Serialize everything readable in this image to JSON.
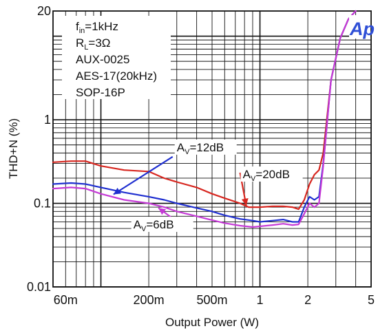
{
  "chart_data": {
    "type": "line",
    "title": "",
    "xlabel": "Output Power (W)",
    "ylabel": "THD+N (%)",
    "x_scale": "log",
    "y_scale": "log",
    "xlim": [
      0.05,
      5
    ],
    "ylim": [
      0.01,
      20
    ],
    "grid": true,
    "x_ticks": [
      {
        "value": 0.06,
        "label": "60m"
      },
      {
        "value": 0.2,
        "label": "200m"
      },
      {
        "value": 0.5,
        "label": "500m"
      },
      {
        "value": 1,
        "label": "1"
      },
      {
        "value": 2,
        "label": "2"
      },
      {
        "value": 5,
        "label": "5"
      }
    ],
    "y_ticks": [
      {
        "value": 0.01,
        "label": "0.01"
      },
      {
        "value": 0.1,
        "label": "0.1"
      },
      {
        "value": 1,
        "label": "1"
      },
      {
        "value": 20,
        "label": "20"
      }
    ],
    "legend": {
      "placement": "top-left",
      "lines": [
        {
          "main": "f",
          "sub": "in",
          "rest": "=1kHz"
        },
        {
          "main": "R",
          "sub": "L",
          "rest": "=3Ω"
        },
        {
          "main": "AUX-0025",
          "sub": "",
          "rest": ""
        },
        {
          "main": "AES-17(20kHz)",
          "sub": "",
          "rest": ""
        },
        {
          "main": "SOP-16P",
          "sub": "",
          "rest": ""
        }
      ]
    },
    "logo": {
      "text": "Ap",
      "color": "#2f4fd6"
    },
    "series": [
      {
        "label_main": "A",
        "label_sub": "V",
        "label_rest": "=20dB",
        "color": "#d7261f",
        "x": [
          0.05,
          0.065,
          0.08,
          0.1,
          0.14,
          0.2,
          0.25,
          0.3,
          0.4,
          0.5,
          0.6,
          0.75,
          0.85,
          1,
          1.2,
          1.4,
          1.6,
          1.75,
          1.9,
          2.05,
          2.2,
          2.35,
          2.5,
          2.8,
          3.2,
          3.6,
          4
        ],
        "y": [
          0.31,
          0.32,
          0.32,
          0.28,
          0.25,
          0.24,
          0.2,
          0.18,
          0.155,
          0.13,
          0.115,
          0.1,
          0.09,
          0.09,
          0.092,
          0.092,
          0.09,
          0.085,
          0.11,
          0.17,
          0.22,
          0.25,
          0.4,
          3.0,
          9.5,
          16,
          20
        ]
      },
      {
        "label_main": "A",
        "label_sub": "V",
        "label_rest": "=12dB",
        "color": "#1f2fd0",
        "x": [
          0.05,
          0.065,
          0.08,
          0.1,
          0.14,
          0.2,
          0.25,
          0.3,
          0.4,
          0.5,
          0.6,
          0.75,
          0.9,
          1,
          1.2,
          1.4,
          1.6,
          1.75,
          1.9,
          2.05,
          2.2,
          2.35,
          2.5,
          2.8,
          3.2,
          3.6,
          4
        ],
        "y": [
          0.17,
          0.175,
          0.17,
          0.155,
          0.135,
          0.12,
          0.11,
          0.1,
          0.088,
          0.08,
          0.072,
          0.065,
          0.062,
          0.06,
          0.062,
          0.064,
          0.06,
          0.06,
          0.09,
          0.12,
          0.11,
          0.12,
          0.3,
          3.0,
          9.5,
          16,
          20
        ]
      },
      {
        "label_main": "A",
        "label_sub": "V",
        "label_rest": "=6dB",
        "color": "#c53ad6",
        "x": [
          0.05,
          0.065,
          0.08,
          0.1,
          0.14,
          0.2,
          0.25,
          0.3,
          0.4,
          0.5,
          0.6,
          0.75,
          0.9,
          1,
          1.2,
          1.4,
          1.6,
          1.75,
          1.9,
          2.05,
          2.2,
          2.35,
          2.5,
          2.8,
          3.2,
          3.6,
          4
        ],
        "y": [
          0.15,
          0.155,
          0.15,
          0.13,
          0.11,
          0.1,
          0.09,
          0.08,
          0.07,
          0.063,
          0.058,
          0.054,
          0.052,
          0.053,
          0.055,
          0.057,
          0.055,
          0.056,
          0.075,
          0.1,
          0.09,
          0.1,
          0.28,
          3.0,
          9.5,
          16,
          20
        ]
      }
    ],
    "annotations": [
      {
        "series_index": 0,
        "text_x": 0.78,
        "text_y": 0.2,
        "arrow_to_x": 0.82,
        "arrow_to_y": 0.094
      },
      {
        "series_index": 1,
        "text_x": 0.3,
        "text_y": 0.42,
        "arrow_to_x": 0.12,
        "arrow_to_y": 0.128
      },
      {
        "series_index": 2,
        "text_x": 0.16,
        "text_y": 0.05,
        "arrow_to_x": 0.23,
        "arrow_to_y": 0.088
      }
    ]
  }
}
